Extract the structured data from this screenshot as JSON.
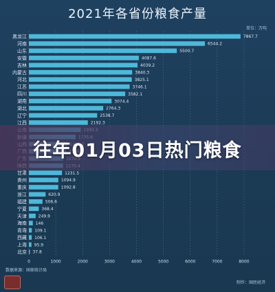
{
  "title": "2021年各省份粮食产量",
  "banner": "往年01月03日热门粮食",
  "source": "数据来源：国家统计局",
  "credit": "制作：国民经济",
  "colors": {
    "bar": "#4fb8d8",
    "grid": "#3e6a88",
    "label": "#dbe9f4",
    "value": "#dbe9f4",
    "axis": "#cfe1ee"
  },
  "chart_data": {
    "type": "bar",
    "orientation": "horizontal",
    "title": "2021年各省份粮食产量",
    "unit": "单位：万吨",
    "xlim": [
      0,
      8000
    ],
    "xticks": [
      0,
      1000,
      2000,
      3000,
      4000,
      5000,
      6000,
      7000,
      8000
    ],
    "grid": true,
    "categories": [
      "黑龙江",
      "河南",
      "山东",
      "安徽",
      "吉林",
      "内蒙古",
      "河北",
      "江苏",
      "四川",
      "湖南",
      "湖北",
      "辽宁",
      "江西",
      "云南",
      "新疆",
      "山西",
      "广西",
      "广东",
      "陕西",
      "甘肃",
      "贵州",
      "重庆",
      "浙江",
      "福建",
      "宁夏",
      "天津",
      "海南",
      "青海",
      "西藏",
      "上海",
      "北京"
    ],
    "values": [
      7867.7,
      6544.2,
      5500.7,
      4087.6,
      4039.2,
      3840.3,
      3825.1,
      3746.1,
      3582.1,
      3074.4,
      2764.3,
      2538.7,
      2192.3,
      1930.3,
      1735.8,
      1421.2,
      1386.5,
      1279.9,
      1270.4,
      1231.5,
      1094.9,
      1092.8,
      620.9,
      506.6,
      368.4,
      249.9,
      146,
      109.1,
      106.1,
      95.9,
      37.8
    ]
  }
}
